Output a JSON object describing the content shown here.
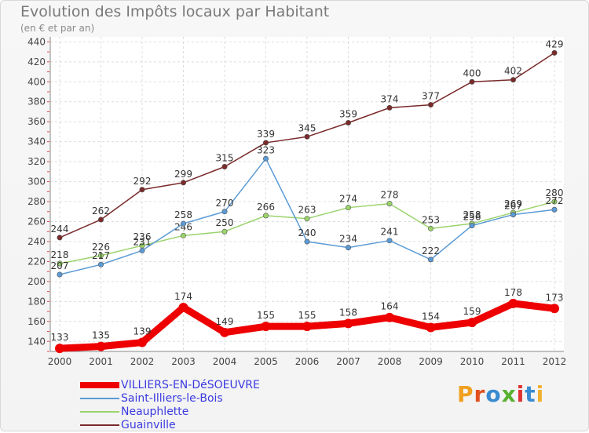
{
  "header": {
    "title": "Evolution des Impôts locaux par Habitant",
    "subtitle": "(en € et par an)"
  },
  "brand": {
    "text": "Proxiti",
    "colors": [
      "#f0a020",
      "#e05020",
      "#3a8ad0",
      "#58b030",
      "#e03030",
      "#3a8ad0",
      "#f0b030"
    ]
  },
  "chart_data": {
    "type": "line",
    "x": [
      "2000",
      "2001",
      "2002",
      "2003",
      "2004",
      "2005",
      "2006",
      "2007",
      "2008",
      "2009",
      "2010",
      "2011",
      "2012"
    ],
    "ylim": [
      130,
      445
    ],
    "yticks": [
      140,
      160,
      180,
      200,
      220,
      240,
      260,
      280,
      300,
      320,
      340,
      360,
      380,
      400,
      420,
      440
    ],
    "grid": true,
    "legend_position": "bottom-left",
    "series": [
      {
        "name": "VILLIERS-EN-DéSOEUVRE",
        "color": "#ee0000",
        "values": [
          133,
          135,
          139,
          174,
          149,
          155,
          155,
          158,
          164,
          154,
          159,
          178,
          173
        ],
        "labels": [
          "133",
          "135",
          "139",
          "174",
          "149",
          "155",
          "155",
          "158",
          "164",
          "154",
          "159",
          "178",
          "173"
        ]
      },
      {
        "name": "Saint-Illiers-le-Bois",
        "color": "#5b9bd5",
        "values": [
          207,
          217,
          231,
          258,
          270,
          323,
          240,
          234,
          241,
          222,
          256,
          267,
          272
        ],
        "labels": [
          "207",
          "217",
          "231",
          "258",
          "270",
          "323",
          "240",
          "234",
          "241",
          "222",
          "256",
          "267",
          "272"
        ]
      },
      {
        "name": "Neauphlette",
        "color": "#9bd36b",
        "values": [
          218,
          226,
          236,
          246,
          250,
          266,
          263,
          274,
          278,
          253,
          258,
          269,
          280
        ],
        "labels": [
          "218",
          "226",
          "236",
          "246",
          "250",
          "266",
          "263",
          "274",
          "278",
          "253",
          "258",
          "269",
          "280"
        ]
      },
      {
        "name": "Guainville",
        "color": "#7a2a2a",
        "values": [
          244,
          262,
          292,
          299,
          315,
          339,
          345,
          359,
          374,
          377,
          400,
          402,
          429
        ],
        "labels": [
          "244",
          "262",
          "292",
          "299",
          "315",
          "339",
          "345",
          "359",
          "374",
          "377",
          "400",
          "402",
          "429"
        ]
      }
    ]
  }
}
